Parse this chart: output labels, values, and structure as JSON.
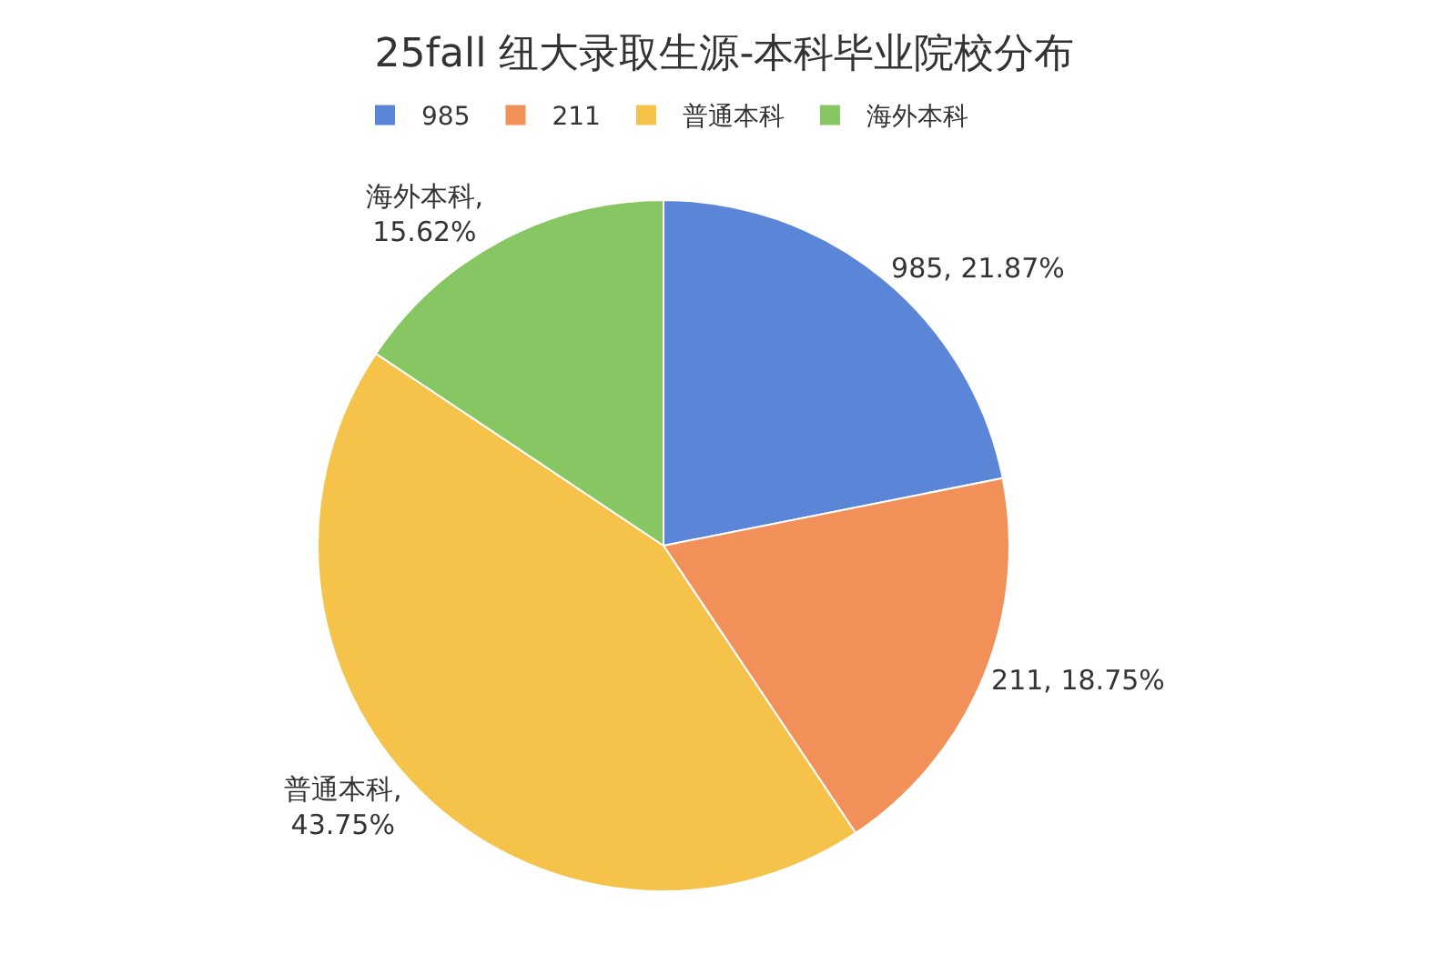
{
  "chart_data": {
    "type": "pie",
    "title": "25fall 纽大录取生源-本科毕业院校分布",
    "categories": [
      "985",
      "211",
      "普通本科",
      "海外本科"
    ],
    "values": [
      21.87,
      18.75,
      43.75,
      15.62
    ],
    "value_labels": [
      "985, 21.87%",
      "211, 18.75%",
      "普通本科,\n43.75%",
      "海外本科,\n15.62%"
    ],
    "colors": [
      "#5b86d8",
      "#f2905a",
      "#f5c24a",
      "#86c663"
    ],
    "legend": "top"
  }
}
